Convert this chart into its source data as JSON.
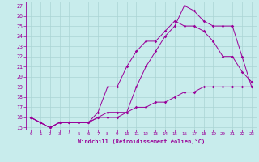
{
  "xlabel": "Windchill (Refroidissement éolien,°C)",
  "bg_color": "#c8ecec",
  "line_color": "#990099",
  "grid_color": "#aad4d4",
  "xlim": [
    -0.5,
    23.5
  ],
  "ylim": [
    14.8,
    27.4
  ],
  "yticks": [
    15,
    16,
    17,
    18,
    19,
    20,
    21,
    22,
    23,
    24,
    25,
    26,
    27
  ],
  "xticks": [
    0,
    1,
    2,
    3,
    4,
    5,
    6,
    7,
    8,
    9,
    10,
    11,
    12,
    13,
    14,
    15,
    16,
    17,
    18,
    19,
    20,
    21,
    22,
    23
  ],
  "line1_x": [
    0,
    1,
    2,
    3,
    4,
    5,
    6,
    7,
    8,
    9,
    10,
    11,
    12,
    13,
    14,
    15,
    16,
    17,
    18,
    19,
    20,
    21,
    22,
    23
  ],
  "line1_y": [
    16.0,
    15.5,
    15.0,
    15.5,
    15.5,
    15.5,
    15.5,
    16.0,
    16.5,
    16.5,
    16.5,
    17.0,
    17.0,
    17.5,
    17.5,
    18.0,
    18.5,
    18.5,
    19.0,
    19.0,
    19.0,
    19.0,
    19.0,
    19.0
  ],
  "line2_x": [
    0,
    1,
    2,
    3,
    4,
    5,
    6,
    7,
    8,
    9,
    10,
    11,
    12,
    13,
    14,
    15,
    16,
    17,
    18,
    19,
    20,
    21,
    22,
    23
  ],
  "line2_y": [
    16.0,
    15.5,
    15.0,
    15.5,
    15.5,
    15.5,
    15.5,
    16.5,
    19.0,
    19.0,
    21.0,
    22.5,
    23.5,
    23.5,
    24.5,
    25.5,
    25.0,
    25.0,
    24.5,
    23.5,
    22.0,
    22.0,
    20.5,
    19.5
  ],
  "line3_x": [
    0,
    1,
    2,
    3,
    4,
    5,
    6,
    7,
    8,
    9,
    10,
    11,
    12,
    13,
    14,
    15,
    16,
    17,
    18,
    19,
    20,
    21,
    22,
    23
  ],
  "line3_y": [
    16.0,
    15.5,
    15.0,
    15.5,
    15.5,
    15.5,
    15.5,
    16.0,
    16.0,
    16.0,
    16.5,
    19.0,
    21.0,
    22.5,
    24.0,
    25.0,
    27.0,
    26.5,
    25.5,
    25.0,
    25.0,
    25.0,
    22.0,
    19.0
  ]
}
